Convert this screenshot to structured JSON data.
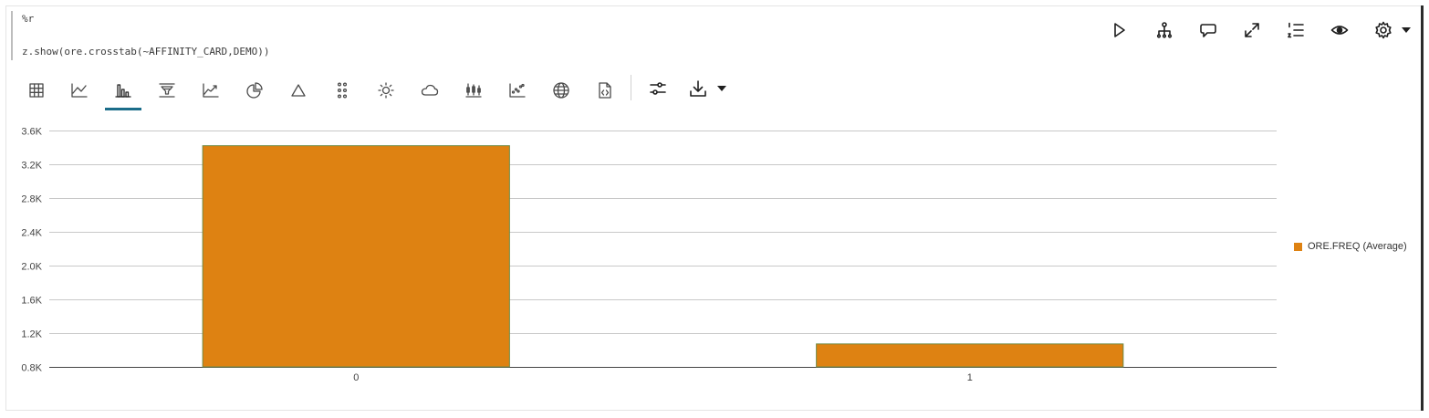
{
  "editor": {
    "line1": "%r",
    "line2_prefix": "z.show(ore.crosstab",
    "line2_args": "(~AFFINITY_CARD,DEMO)",
    "line2_suffix": ")"
  },
  "actions": [
    {
      "name": "run-icon"
    },
    {
      "name": "hierarchy-icon"
    },
    {
      "name": "comments-icon"
    },
    {
      "name": "expand-icon"
    },
    {
      "name": "ordered-list-icon"
    },
    {
      "name": "eye-icon"
    },
    {
      "name": "settings-icon"
    }
  ],
  "toolbar": {
    "items": [
      "table-icon",
      "line-chart-icon",
      "bar-chart-icon",
      "funnel-chart-icon",
      "area-trend-icon",
      "pie-chart-icon",
      "pyramid-icon",
      "scatter-grid-icon",
      "sunburst-icon",
      "tag-cloud-icon",
      "boxplot-icon",
      "scatter-icon",
      "map-globe-icon",
      "code-file-icon"
    ],
    "active": "bar-chart-icon",
    "extra": [
      "chart-settings-icon",
      "download-icon"
    ]
  },
  "colors": {
    "bar": "#de8212",
    "bar_border": "#6f8a45",
    "grid": "#c8c8c8",
    "underline": "#1b6d8a"
  },
  "chart_data": {
    "type": "bar",
    "categories": [
      "0",
      "1"
    ],
    "series": [
      {
        "name": "ORE.FREQ (Average)",
        "values": [
          3420,
          1072
        ]
      }
    ],
    "ylim": [
      800,
      3600
    ],
    "yticks": [
      "0.8K",
      "1.2K",
      "1.6K",
      "2.0K",
      "2.4K",
      "2.8K",
      "3.2K",
      "3.6K"
    ],
    "ytick_values": [
      800,
      1200,
      1600,
      2000,
      2400,
      2800,
      3200,
      3600
    ],
    "grid": true,
    "legend": "right"
  }
}
